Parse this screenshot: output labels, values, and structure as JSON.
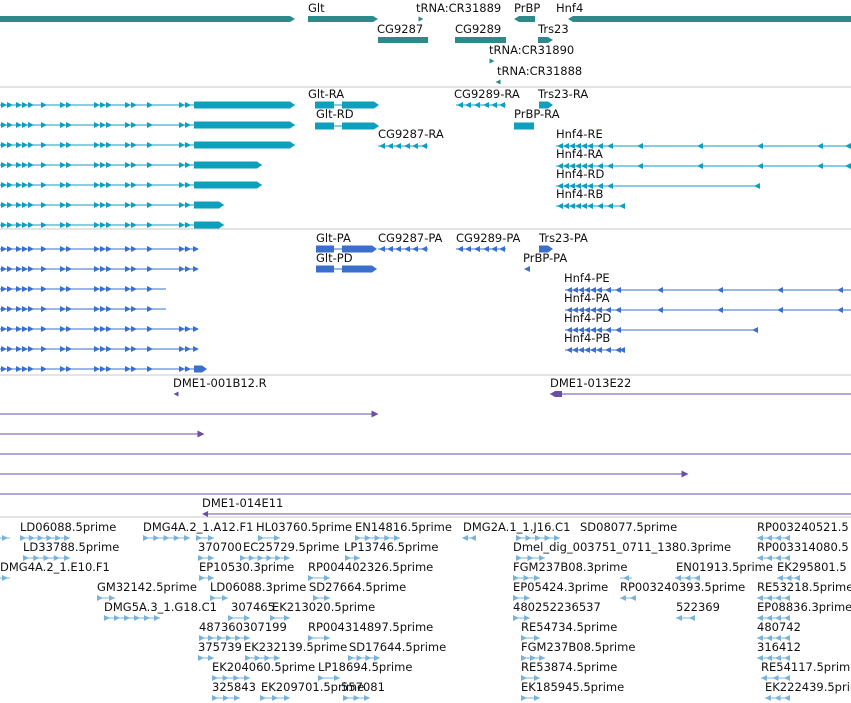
{
  "colors": {
    "gene": "#2e8a8a",
    "transcript": "#0f9fbe",
    "cds": "#3a6fcc",
    "clone": "#6a4fa8",
    "est": "#79b3db",
    "separator": "#c8c8c8"
  },
  "tracks": {
    "genes": {
      "features": [
        {
          "label": "Glt"
        },
        {
          "label": "tRNA:CR31889"
        },
        {
          "label": "PrBP"
        },
        {
          "label": "Hnf4"
        },
        {
          "label": "CG9287"
        },
        {
          "label": "CG9289"
        },
        {
          "label": "Trs23"
        },
        {
          "label": "tRNA:CR31890"
        },
        {
          "label": "tRNA:CR31888"
        }
      ]
    },
    "transcripts": {
      "features": [
        {
          "label": "Glt-RA"
        },
        {
          "label": "CG9289-RA"
        },
        {
          "label": "Trs23-RA"
        },
        {
          "label": "Glt-RD"
        },
        {
          "label": "PrBP-RA"
        },
        {
          "label": "CG9287-RA"
        },
        {
          "label": "Hnf4-RE"
        },
        {
          "label": "Hnf4-RA"
        },
        {
          "label": "Hnf4-RD"
        },
        {
          "label": "Hnf4-RB"
        }
      ]
    },
    "cds": {
      "features": [
        {
          "label": "Glt-PA"
        },
        {
          "label": "CG9287-PA"
        },
        {
          "label": "CG9289-PA"
        },
        {
          "label": "Trs23-PA"
        },
        {
          "label": "Glt-PD"
        },
        {
          "label": "PrBP-PA"
        },
        {
          "label": "Hnf4-PE"
        },
        {
          "label": "Hnf4-PA"
        },
        {
          "label": "Hnf4-PD"
        },
        {
          "label": "Hnf4-PB"
        }
      ]
    },
    "clones": {
      "features": [
        {
          "label": "DME1-001B12.R"
        },
        {
          "label": "DME1-013E22"
        },
        {
          "label": "DME1-014E11"
        }
      ]
    },
    "ests": {
      "features": [
        {
          "label": "LD06088.5prime"
        },
        {
          "label": "DMG4A.2_1.A12.F1"
        },
        {
          "label": "HL03760.5prime"
        },
        {
          "label": "EN14816.5prime"
        },
        {
          "label": "DMG2A.1_1.J16.C1"
        },
        {
          "label": "SD08077.5prime"
        },
        {
          "label": "RP003240521.5"
        },
        {
          "label": "LD33788.5prime"
        },
        {
          "label": "370700"
        },
        {
          "label": "EC25729.5prime"
        },
        {
          "label": "LP13746.5prime"
        },
        {
          "label": "Dmel_dig_003751_0711_1380.3prime"
        },
        {
          "label": "RP003314080.5"
        },
        {
          "label": "DMG4A.2_1.E10.F1"
        },
        {
          "label": "EP10530.3prime"
        },
        {
          "label": "RP004402326.5prime"
        },
        {
          "label": "FGM237B08.3prime"
        },
        {
          "label": "EN01913.5prime"
        },
        {
          "label": "EK295801.5"
        },
        {
          "label": "GM32142.5prime"
        },
        {
          "label": "LD06088.3prime"
        },
        {
          "label": "SD27664.5prime"
        },
        {
          "label": "EP05424.3prime"
        },
        {
          "label": "RP003240393.5prime"
        },
        {
          "label": "RE53218.5prime"
        },
        {
          "label": "DMG5A.3_1.G18.C1"
        },
        {
          "label": "307465"
        },
        {
          "label": "EK213020.5prime"
        },
        {
          "label": "480252236537"
        },
        {
          "label": "522369"
        },
        {
          "label": "EP08836.3prime"
        },
        {
          "label": "487360307199"
        },
        {
          "label": "RP004314897.5prime"
        },
        {
          "label": "RE54734.5prime"
        },
        {
          "label": "480742"
        },
        {
          "label": "375739"
        },
        {
          "label": "EK232139.5prime"
        },
        {
          "label": "SD17644.5prime"
        },
        {
          "label": "FGM237B08.5prime"
        },
        {
          "label": "316412"
        },
        {
          "label": "EK204060.5prime"
        },
        {
          "label": "LP18694.5prime"
        },
        {
          "label": "RE53874.5prime"
        },
        {
          "label": "RE54117.5prime"
        },
        {
          "label": "325843"
        },
        {
          "label": "EK209701.5prime"
        },
        {
          "label": "557081"
        },
        {
          "label": "EK185945.5prime"
        },
        {
          "label": "EK222439.5prime"
        }
      ]
    }
  }
}
